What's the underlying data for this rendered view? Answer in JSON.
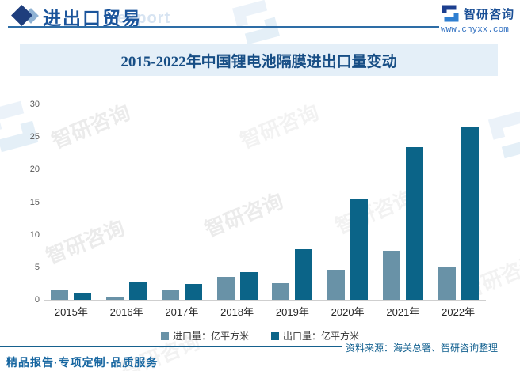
{
  "header": {
    "title": "进出口贸易",
    "watermark": "export",
    "brand": {
      "name": "智研咨询",
      "url": "www.chyxx.com"
    }
  },
  "banner": {
    "title": "2015-2022年中国锂电池隔膜进出口量变动"
  },
  "chart_data": {
    "type": "bar",
    "title": "2015-2022年中国锂电池隔膜进出口量变动",
    "categories": [
      "2015年",
      "2016年",
      "2017年",
      "2018年",
      "2019年",
      "2020年",
      "2021年",
      "2022年"
    ],
    "series": [
      {
        "name": "进口量：亿平方米",
        "color": "#6992a7",
        "values": [
          1.6,
          0.5,
          1.5,
          3.5,
          2.6,
          4.6,
          7.5,
          5.1
        ]
      },
      {
        "name": "出口量：亿平方米",
        "color": "#0b6488",
        "values": [
          1.0,
          2.7,
          2.4,
          4.3,
          7.8,
          15.4,
          23.5,
          26.6
        ]
      }
    ],
    "xlabel": "",
    "ylabel": "",
    "ylim": [
      0,
      30
    ],
    "yticks": [
      0,
      5,
      10,
      15,
      20,
      25,
      30
    ],
    "grid": false,
    "legend_position": "bottom"
  },
  "footer": {
    "source": "资料来源：海关总署、智研咨询整理",
    "tagline": "精品报告·专项定制·品质服务"
  },
  "watermark_text": "智研咨询"
}
